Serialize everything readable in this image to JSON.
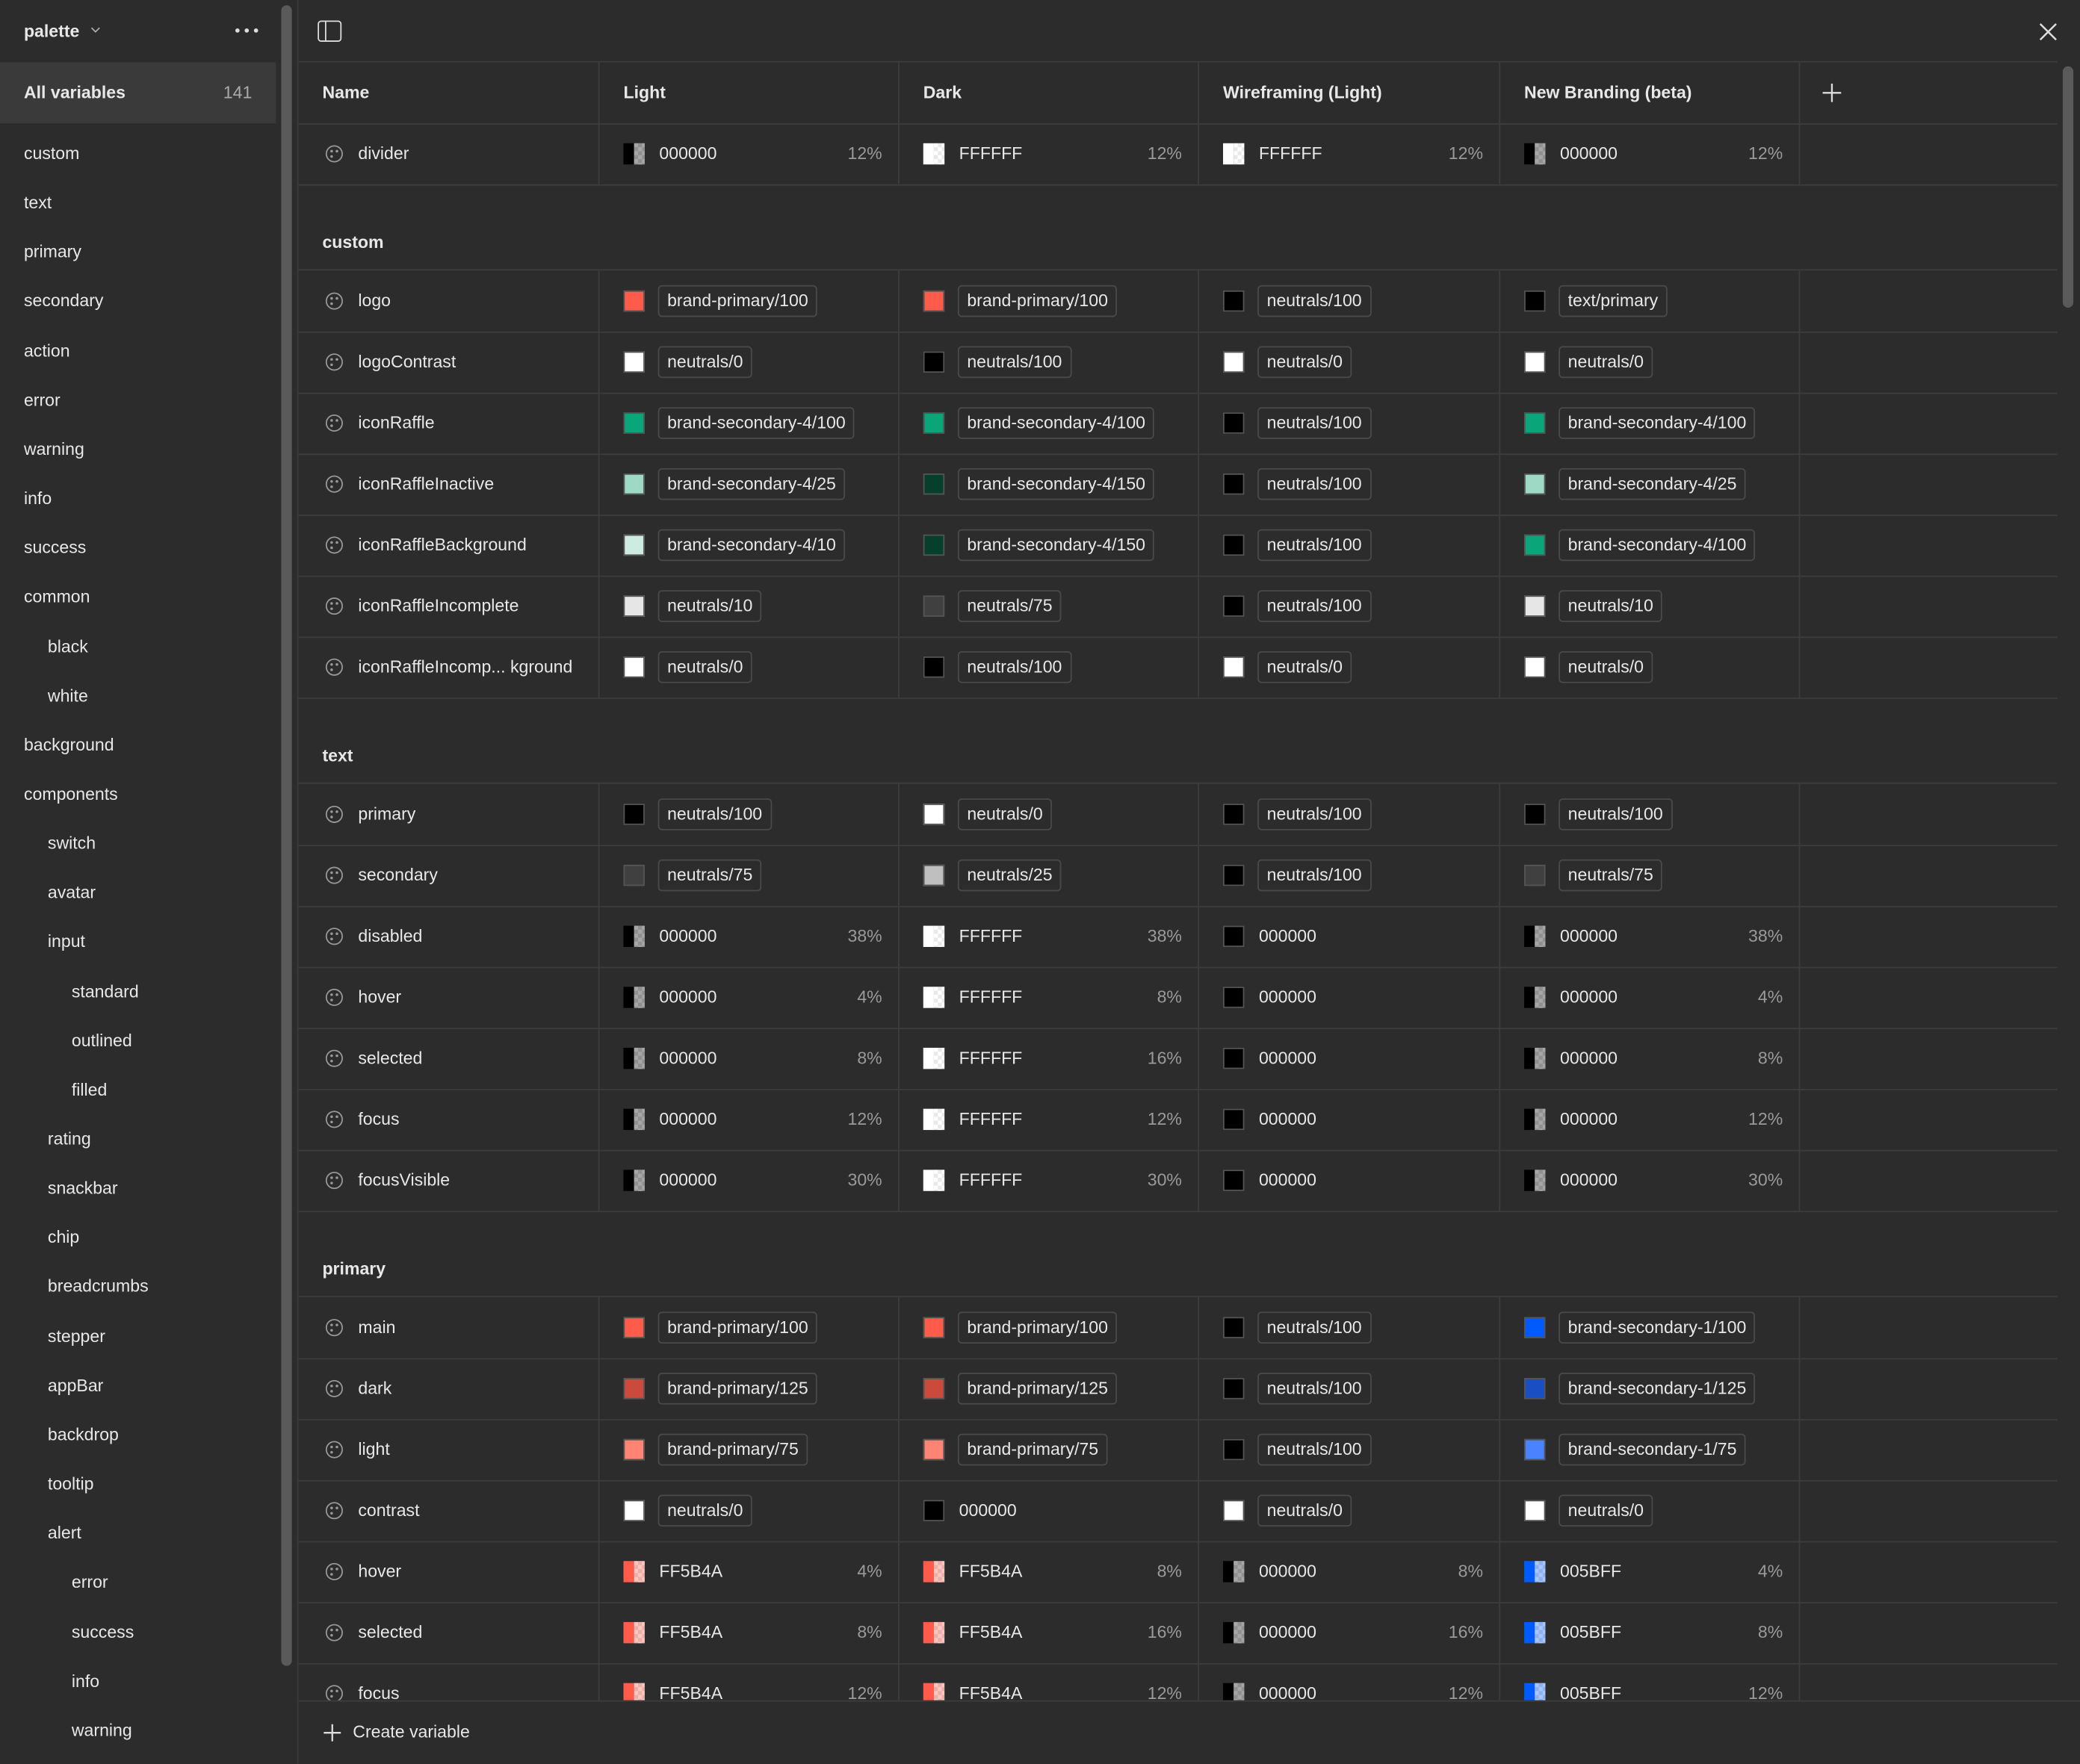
{
  "sidebar": {
    "title": "palette",
    "all_label": "All variables",
    "all_count": "141",
    "items": [
      "custom",
      "text",
      "primary",
      "secondary",
      "action",
      "error",
      "warning",
      "info",
      "success",
      "common",
      "black",
      "white",
      "background",
      "components",
      "switch",
      "avatar",
      "input",
      "standard",
      "outlined",
      "filled",
      "rating",
      "snackbar",
      "chip",
      "breadcrumbs",
      "stepper",
      "appBar",
      "backdrop",
      "tooltip",
      "alert",
      "error",
      "success",
      "info",
      "warning"
    ]
  },
  "table": {
    "columns": [
      "Name",
      "Light",
      "Dark",
      "Wireframing (Light)",
      "New Branding (beta)"
    ],
    "sections": [
      {
        "rows": [
          {
            "name": "divider",
            "cells": [
              {
                "text": "000000",
                "percent": "12%",
                "swatch": "#000000",
                "alias": false
              },
              {
                "text": "FFFFFF",
                "percent": "12%",
                "swatch": "#ffffff",
                "alias": false
              },
              {
                "text": "FFFFFF",
                "percent": "12%",
                "swatch": "#ffffff",
                "alias": false
              },
              {
                "text": "000000",
                "percent": "12%",
                "swatch": "#000000",
                "alias": false
              }
            ]
          }
        ]
      },
      {
        "title": "custom",
        "rows": [
          {
            "name": "logo",
            "cells": [
              {
                "text": "brand-primary/100",
                "swatch": "#ff5b4a",
                "alias": true
              },
              {
                "text": "brand-primary/100",
                "swatch": "#ff5b4a",
                "alias": true
              },
              {
                "text": "neutrals/100",
                "swatch": "#000000",
                "alias": true
              },
              {
                "text": "text/primary",
                "swatch": "#000000",
                "alias": true
              }
            ]
          },
          {
            "name": "logoContrast",
            "cells": [
              {
                "text": "neutrals/0",
                "swatch": "#ffffff",
                "alias": true
              },
              {
                "text": "neutrals/100",
                "swatch": "#000000",
                "alias": true
              },
              {
                "text": "neutrals/0",
                "swatch": "#ffffff",
                "alias": true
              },
              {
                "text": "neutrals/0",
                "swatch": "#ffffff",
                "alias": true
              }
            ]
          },
          {
            "name": "iconRaffle",
            "cells": [
              {
                "text": "brand-secondary-4/100",
                "swatch": "#0ba57a",
                "alias": true
              },
              {
                "text": "brand-secondary-4/100",
                "swatch": "#0ba57a",
                "alias": true
              },
              {
                "text": "neutrals/100",
                "swatch": "#000000",
                "alias": true
              },
              {
                "text": "brand-secondary-4/100",
                "swatch": "#0ba57a",
                "alias": true
              }
            ]
          },
          {
            "name": "iconRaffleInactive",
            "cells": [
              {
                "text": "brand-secondary-4/25",
                "swatch": "#9dd9c4",
                "alias": true
              },
              {
                "text": "brand-secondary-4/150",
                "swatch": "#063f2c",
                "alias": true
              },
              {
                "text": "neutrals/100",
                "swatch": "#000000",
                "alias": true
              },
              {
                "text": "brand-secondary-4/25",
                "swatch": "#9dd9c4",
                "alias": true
              }
            ]
          },
          {
            "name": "iconRaffleBackground",
            "cells": [
              {
                "text": "brand-secondary-4/10",
                "swatch": "#cdebe0",
                "alias": true
              },
              {
                "text": "brand-secondary-4/150",
                "swatch": "#063f2c",
                "alias": true
              },
              {
                "text": "neutrals/100",
                "swatch": "#000000",
                "alias": true
              },
              {
                "text": "brand-secondary-4/100",
                "swatch": "#0ba57a",
                "alias": true
              }
            ]
          },
          {
            "name": "iconRaffleIncomplete",
            "cells": [
              {
                "text": "neutrals/10",
                "swatch": "#e6e6e6",
                "alias": true
              },
              {
                "text": "neutrals/75",
                "swatch": "#404040",
                "alias": true
              },
              {
                "text": "neutrals/100",
                "swatch": "#000000",
                "alias": true
              },
              {
                "text": "neutrals/10",
                "swatch": "#e6e6e6",
                "alias": true
              }
            ]
          },
          {
            "name": "iconRaffleIncomp... kground",
            "cells": [
              {
                "text": "neutrals/0",
                "swatch": "#ffffff",
                "alias": true
              },
              {
                "text": "neutrals/100",
                "swatch": "#000000",
                "alias": true
              },
              {
                "text": "neutrals/0",
                "swatch": "#ffffff",
                "alias": true
              },
              {
                "text": "neutrals/0",
                "swatch": "#ffffff",
                "alias": true
              }
            ]
          }
        ]
      },
      {
        "title": "text",
        "rows": [
          {
            "name": "primary",
            "cells": [
              {
                "text": "neutrals/100",
                "swatch": "#000000",
                "alias": true
              },
              {
                "text": "neutrals/0",
                "swatch": "#ffffff",
                "alias": true
              },
              {
                "text": "neutrals/100",
                "swatch": "#000000",
                "alias": true
              },
              {
                "text": "neutrals/100",
                "swatch": "#000000",
                "alias": true
              }
            ]
          },
          {
            "name": "secondary",
            "cells": [
              {
                "text": "neutrals/75",
                "swatch": "#404040",
                "alias": true
              },
              {
                "text": "neutrals/25",
                "swatch": "#bfbfbf",
                "alias": true
              },
              {
                "text": "neutrals/100",
                "swatch": "#000000",
                "alias": true
              },
              {
                "text": "neutrals/75",
                "swatch": "#404040",
                "alias": true
              }
            ]
          },
          {
            "name": "disabled",
            "cells": [
              {
                "text": "000000",
                "percent": "38%",
                "swatch": "#000000",
                "alias": false
              },
              {
                "text": "FFFFFF",
                "percent": "38%",
                "swatch": "#ffffff",
                "alias": false
              },
              {
                "text": "000000",
                "swatch": "#000000",
                "alias": false
              },
              {
                "text": "000000",
                "percent": "38%",
                "swatch": "#000000",
                "alias": false
              }
            ]
          },
          {
            "name": "hover",
            "cells": [
              {
                "text": "000000",
                "percent": "4%",
                "swatch": "#000000",
                "alias": false
              },
              {
                "text": "FFFFFF",
                "percent": "8%",
                "swatch": "#ffffff",
                "alias": false
              },
              {
                "text": "000000",
                "swatch": "#000000",
                "alias": false
              },
              {
                "text": "000000",
                "percent": "4%",
                "swatch": "#000000",
                "alias": false
              }
            ]
          },
          {
            "name": "selected",
            "cells": [
              {
                "text": "000000",
                "percent": "8%",
                "swatch": "#000000",
                "alias": false
              },
              {
                "text": "FFFFFF",
                "percent": "16%",
                "swatch": "#ffffff",
                "alias": false
              },
              {
                "text": "000000",
                "swatch": "#000000",
                "alias": false
              },
              {
                "text": "000000",
                "percent": "8%",
                "swatch": "#000000",
                "alias": false
              }
            ]
          },
          {
            "name": "focus",
            "cells": [
              {
                "text": "000000",
                "percent": "12%",
                "swatch": "#000000",
                "alias": false
              },
              {
                "text": "FFFFFF",
                "percent": "12%",
                "swatch": "#ffffff",
                "alias": false
              },
              {
                "text": "000000",
                "swatch": "#000000",
                "alias": false
              },
              {
                "text": "000000",
                "percent": "12%",
                "swatch": "#000000",
                "alias": false
              }
            ]
          },
          {
            "name": "focusVisible",
            "cells": [
              {
                "text": "000000",
                "percent": "30%",
                "swatch": "#000000",
                "alias": false
              },
              {
                "text": "FFFFFF",
                "percent": "30%",
                "swatch": "#ffffff",
                "alias": false
              },
              {
                "text": "000000",
                "swatch": "#000000",
                "alias": false
              },
              {
                "text": "000000",
                "percent": "30%",
                "swatch": "#000000",
                "alias": false
              }
            ]
          }
        ]
      },
      {
        "title": "primary",
        "rows": [
          {
            "name": "main",
            "cells": [
              {
                "text": "brand-primary/100",
                "swatch": "#ff5b4a",
                "alias": true
              },
              {
                "text": "brand-primary/100",
                "swatch": "#ff5b4a",
                "alias": true
              },
              {
                "text": "neutrals/100",
                "swatch": "#000000",
                "alias": true
              },
              {
                "text": "brand-secondary-1/100",
                "swatch": "#005bff",
                "alias": true
              }
            ]
          },
          {
            "name": "dark",
            "cells": [
              {
                "text": "brand-primary/125",
                "swatch": "#cc4a3b",
                "alias": true
              },
              {
                "text": "brand-primary/125",
                "swatch": "#cc4a3b",
                "alias": true
              },
              {
                "text": "neutrals/100",
                "swatch": "#000000",
                "alias": true
              },
              {
                "text": "brand-secondary-1/125",
                "swatch": "#1a4fc4",
                "alias": true
              }
            ]
          },
          {
            "name": "light",
            "cells": [
              {
                "text": "brand-primary/75",
                "swatch": "#ff8473",
                "alias": true
              },
              {
                "text": "brand-primary/75",
                "swatch": "#ff8473",
                "alias": true
              },
              {
                "text": "neutrals/100",
                "swatch": "#000000",
                "alias": true
              },
              {
                "text": "brand-secondary-1/75",
                "swatch": "#4a82ff",
                "alias": true
              }
            ]
          },
          {
            "name": "contrast",
            "cells": [
              {
                "text": "neutrals/0",
                "swatch": "#ffffff",
                "alias": true
              },
              {
                "text": "000000",
                "swatch": "#000000",
                "alias": false
              },
              {
                "text": "neutrals/0",
                "swatch": "#ffffff",
                "alias": true
              },
              {
                "text": "neutrals/0",
                "swatch": "#ffffff",
                "alias": true
              }
            ]
          },
          {
            "name": "hover",
            "cells": [
              {
                "text": "FF5B4A",
                "percent": "4%",
                "swatch": "#ff5b4a",
                "alias": false
              },
              {
                "text": "FF5B4A",
                "percent": "8%",
                "swatch": "#ff5b4a",
                "alias": false
              },
              {
                "text": "000000",
                "percent": "8%",
                "swatch": "#000000",
                "alias": false
              },
              {
                "text": "005BFF",
                "percent": "4%",
                "swatch": "#005bff",
                "alias": false
              }
            ]
          },
          {
            "name": "selected",
            "cells": [
              {
                "text": "FF5B4A",
                "percent": "8%",
                "swatch": "#ff5b4a",
                "alias": false
              },
              {
                "text": "FF5B4A",
                "percent": "16%",
                "swatch": "#ff5b4a",
                "alias": false
              },
              {
                "text": "000000",
                "percent": "16%",
                "swatch": "#000000",
                "alias": false
              },
              {
                "text": "005BFF",
                "percent": "8%",
                "swatch": "#005bff",
                "alias": false
              }
            ]
          },
          {
            "name": "focus",
            "cells": [
              {
                "text": "FF5B4A",
                "percent": "12%",
                "swatch": "#ff5b4a",
                "alias": false
              },
              {
                "text": "FF5B4A",
                "percent": "12%",
                "swatch": "#ff5b4a",
                "alias": false
              },
              {
                "text": "000000",
                "percent": "12%",
                "swatch": "#000000",
                "alias": false
              },
              {
                "text": "005BFF",
                "percent": "12%",
                "swatch": "#005bff",
                "alias": false
              }
            ]
          }
        ]
      }
    ]
  },
  "footer": {
    "create": "Create variable"
  }
}
